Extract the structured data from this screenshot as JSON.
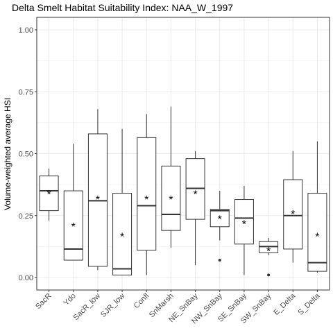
{
  "chart_data": {
    "type": "box",
    "title": "Delta Smelt Habitat Suitability Index: NAA_W_1997",
    "xlabel": "",
    "ylabel": "Volume-weighted average HSI",
    "ylim": [
      0,
      1
    ],
    "y_ticks": [
      "0.00",
      "0.25",
      "0.50",
      "0.75",
      "1.00"
    ],
    "grid": true,
    "mean_marker": "*",
    "colors": {
      "panel_border": "#333333",
      "grid": "#ebebeb",
      "box": "#333333"
    },
    "categories": [
      "SacR",
      "Ydo",
      "SacR_low",
      "SJR_low",
      "Confl",
      "SnMarsh",
      "NE_SnBay",
      "NW_SnBay",
      "SE_SnBay",
      "SW_SnBay",
      "E_Delta",
      "S_Delta"
    ],
    "boxes": [
      {
        "min": 0.23,
        "q1": 0.27,
        "median": 0.35,
        "q3": 0.41,
        "max": 0.44,
        "mean": 0.34,
        "outliers": []
      },
      {
        "min": 0.07,
        "q1": 0.07,
        "median": 0.115,
        "q3": 0.35,
        "max": 0.54,
        "mean": 0.21,
        "outliers": []
      },
      {
        "min": 0.03,
        "q1": 0.045,
        "median": 0.31,
        "q3": 0.58,
        "max": 0.68,
        "mean": 0.32,
        "outliers": []
      },
      {
        "min": 0.01,
        "q1": 0.01,
        "median": 0.035,
        "q3": 0.34,
        "max": 0.6,
        "mean": 0.17,
        "outliers": []
      },
      {
        "min": 0.01,
        "q1": 0.11,
        "median": 0.29,
        "q3": 0.565,
        "max": 0.66,
        "mean": 0.32,
        "outliers": []
      },
      {
        "min": 0.12,
        "q1": 0.19,
        "median": 0.255,
        "q3": 0.45,
        "max": 0.69,
        "mean": 0.32,
        "outliers": []
      },
      {
        "min": 0.05,
        "q1": 0.235,
        "median": 0.36,
        "q3": 0.48,
        "max": 0.51,
        "mean": 0.34,
        "outliers": []
      },
      {
        "min": 0.15,
        "q1": 0.205,
        "median": 0.27,
        "q3": 0.275,
        "max": 0.35,
        "mean": 0.24,
        "outliers": [
          0.07
        ]
      },
      {
        "min": 0.01,
        "q1": 0.135,
        "median": 0.24,
        "q3": 0.315,
        "max": 0.37,
        "mean": 0.22,
        "outliers": []
      },
      {
        "min": 0.09,
        "q1": 0.1,
        "median": 0.125,
        "q3": 0.145,
        "max": 0.16,
        "mean": 0.11,
        "outliers": [
          0.01
        ]
      },
      {
        "min": 0.06,
        "q1": 0.115,
        "median": 0.25,
        "q3": 0.395,
        "max": 0.51,
        "mean": 0.26,
        "outliers": []
      },
      {
        "min": 0.02,
        "q1": 0.025,
        "median": 0.06,
        "q3": 0.34,
        "max": 0.55,
        "mean": 0.17,
        "outliers": []
      }
    ]
  }
}
